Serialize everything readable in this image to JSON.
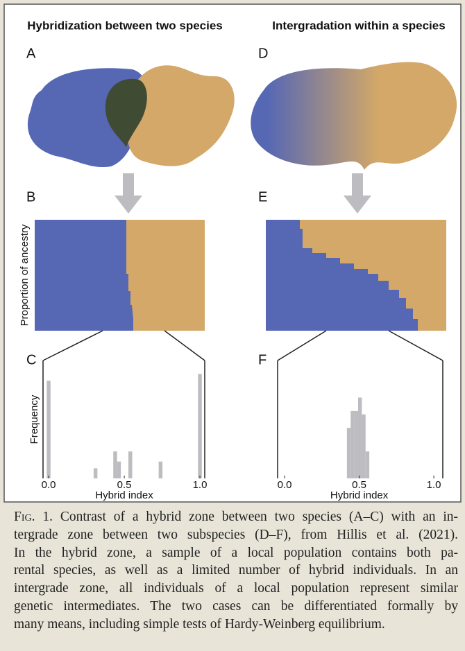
{
  "figure": {
    "panels": [
      {
        "title": "Hybridization between two species",
        "letters": [
          "A",
          "B",
          "C"
        ]
      },
      {
        "title": "Intergradation within a species",
        "letters": [
          "D",
          "E",
          "F"
        ]
      }
    ],
    "ancestry_label": "Proportion of ancestry"
  },
  "chart_data": [
    {
      "type": "bar",
      "x": [
        0,
        0.31,
        0.44,
        0.465,
        0.54,
        0.74,
        1
      ],
      "values": [
        29,
        3,
        8,
        5,
        8,
        5,
        31
      ],
      "bin_width": 0.025,
      "color": "#bdbdc1",
      "xlim": [
        -0.037,
        1.032
      ],
      "ylim": [
        0,
        35
      ],
      "xticks": [
        {
          "value": 0,
          "label": "0.0"
        },
        {
          "value": 0.5,
          "label": "0.5"
        },
        {
          "value": 1,
          "label": "1.0"
        }
      ],
      "x_label": "Hybrid index",
      "y_label": "Frequency"
    },
    {
      "type": "bar",
      "x": [
        0.43,
        0.455,
        0.48,
        0.505,
        0.53,
        0.555
      ],
      "values": [
        15,
        20,
        20,
        24,
        19,
        8
      ],
      "bin_width": 0.025,
      "color": "#bdbdc1",
      "xlim": [
        -0.047,
        1.06
      ],
      "ylim": [
        0,
        35
      ],
      "xticks": [
        {
          "value": 0,
          "label": "0.0"
        },
        {
          "value": 0.5,
          "label": "0.5"
        },
        {
          "value": 1,
          "label": "1.0"
        }
      ],
      "x_label": "Hybrid index"
    }
  ],
  "caption": {
    "label": "Fig. 1.",
    "lines": [
      " Contrast of a hybrid zone between two species (A–C) with an in-",
      "tergrade zone between two subspecies (D–F), from Hillis et al. (2021).",
      "In the hybrid zone, a sample of a local population contains both pa-",
      "rental species, as well as a limited number of hybrid individuals. In an",
      "intergrade zone, all individuals of a local population represent similar",
      "genetic intermediates. The two cases can be differentiated formally by",
      "many means, including simple tests of Hardy-Weinberg equilibrium."
    ]
  }
}
